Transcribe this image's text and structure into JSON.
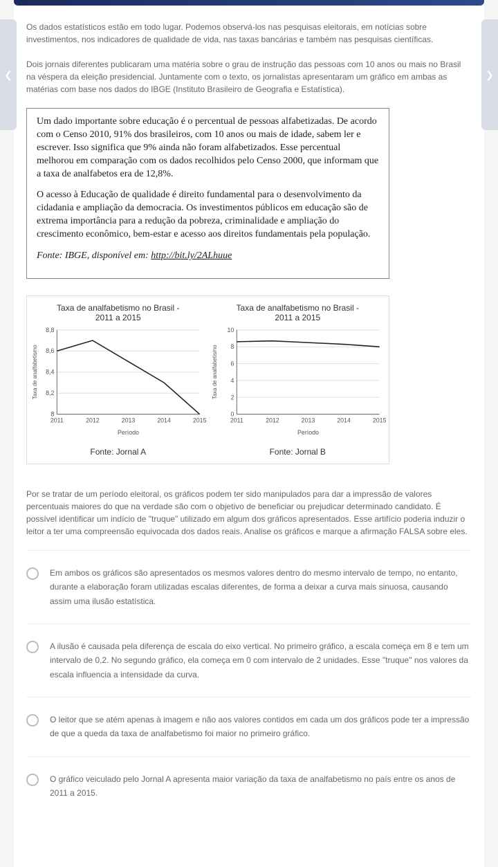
{
  "intro": {
    "p1": "Os dados estatísticos estão em todo lugar. Podemos observá-los nas pesquisas eleitorais, em notícias sobre investimentos, nos indicadores de qualidade de vida, nas taxas bancárias e também nas pesquisas científicas.",
    "p2": "Dois jornais diferentes publicaram uma matéria sobre o grau de instrução das pessoas com 10 anos ou mais no Brasil na véspera da eleição presidencial. Juntamente com o texto, os jornalistas apresentaram um gráfico em ambas as matérias com base nos dados do IBGE (Instituto Brasileiro de Geografia e Estatística)."
  },
  "boxed": {
    "p1": "Um dado importante sobre educação é o percentual de pessoas alfabetizadas. De acordo com o Censo 2010, 91% dos brasileiros, com 10 anos ou mais de idade, sabem ler e escrever. Isso significa que 9% ainda não foram alfabetizados. Esse percentual melhorou em comparação com os dados recolhidos pelo Censo 2000, que informam que a taxa de analfabetos era de 12,8%.",
    "p2": "O acesso à Educação de qualidade é direito fundamental para o desenvolvimento da cidadania e ampliação da democracia. Os investimentos públicos em educação são de extrema importância para a redução da pobreza, criminalidade e ampliação do crescimento econômico, bem-estar e acesso aos direitos fundamentais pela população.",
    "source_prefix": "Fonte: IBGE,  disponível em: ",
    "source_link": "http://bit.ly/2ALhuue"
  },
  "chart_a": {
    "type": "line",
    "title_line1": "Taxa de analfabetismo no Brasil -",
    "title_line2": "2011 a 2015",
    "x_label": "Período",
    "y_label": "Taxa de analfabetismo",
    "x_ticks": [
      "2011",
      "2012",
      "2013",
      "2014",
      "2015"
    ],
    "y_ticks": [
      "8",
      "8,2",
      "8,4",
      "8,6",
      "8,8"
    ],
    "ylim": [
      8.0,
      8.8
    ],
    "ytick_step": 0.2,
    "values": [
      8.6,
      8.7,
      8.5,
      8.3,
      8.0
    ],
    "source": "Fonte: Jornal A",
    "line_color": "#222222",
    "axis_color": "#666666",
    "grid_color": "#dddddd",
    "text_color": "#555555",
    "font_size_title": 12,
    "font_size_axis": 9
  },
  "chart_b": {
    "type": "line",
    "title_line1": "Taxa de analfabetismo no Brasil -",
    "title_line2": "2011 a 2015",
    "x_label": "Período",
    "y_label": "Taxa de analfabetismo",
    "x_ticks": [
      "2011",
      "2012",
      "2013",
      "2014",
      "2015"
    ],
    "y_ticks": [
      "0",
      "2",
      "4",
      "6",
      "8",
      "10"
    ],
    "ylim": [
      0,
      10
    ],
    "ytick_step": 2,
    "values": [
      8.6,
      8.7,
      8.5,
      8.3,
      8.0
    ],
    "source": "Fonte: Jornal B",
    "line_color": "#222222",
    "axis_color": "#666666",
    "grid_color": "#dddddd",
    "text_color": "#555555",
    "font_size_title": 12,
    "font_size_axis": 9
  },
  "question": {
    "text": "Por se tratar de um período eleitoral, os gráficos podem ter sido manipulados para dar a impressão de valores percentuais maiores do que na verdade são com o objetivo de beneficiar ou prejudicar determinado candidato. É possível identificar um indício de \"truque\" utilizado em algum dos gráficos apresentados. Esse artifício poderia induzir o leitor a ter uma compreensão equivocada dos dados reais. Analise os gráficos e marque a afirmação FALSA sobre eles."
  },
  "options": [
    "Em ambos os gráficos são apresentados os mesmos valores dentro do mesmo intervalo de tempo, no entanto, durante a elaboração foram utilizadas escalas diferentes, de forma a deixar a curva mais sinuosa, causando assim uma ilusão estatística.",
    "A ilusão é causada pela diferença de escala do eixo vertical. No primeiro gráfico, a escala começa em 8 e tem um intervalo de 0,2. No segundo gráfico, ela começa em 0 com intervalo de 2 unidades. Esse \"truque\" nos valores da escala influencia a intensidade da curva.",
    "O leitor que se atém apenas à imagem e não aos valores contidos em cada um dos gráficos pode ter a impressão de que a queda da taxa de analfabetismo foi maior no primeiro gráfico.",
    "O gráfico veiculado pelo Jornal A apresenta maior variação da taxa de analfabetismo no país entre os anos de 2011 a 2015."
  ]
}
